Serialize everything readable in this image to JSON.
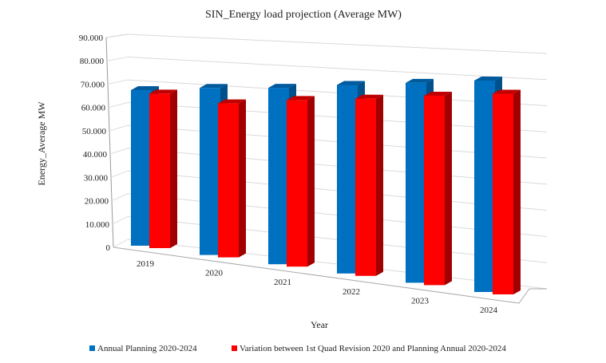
{
  "chart_data": {
    "type": "bar",
    "title": "SIN_Energy load projection (Average MW)",
    "xlabel": "Year",
    "ylabel": "Energy_Average MW",
    "categories": [
      "2019",
      "2020",
      "2021",
      "2022",
      "2023",
      "2024"
    ],
    "ylim": [
      0,
      90000
    ],
    "yticks": [
      "0",
      "10.000",
      "20.000",
      "30.000",
      "40.000",
      "50.000",
      "60.000",
      "70.000",
      "80.000",
      "90.000"
    ],
    "grid": true,
    "style": "3d-clustered",
    "legend_position": "bottom",
    "series": [
      {
        "name": "Annual Planning 2020-2024",
        "color": "#0070C0",
        "values": [
          68000,
          70500,
          72000,
          74500,
          76500,
          78500
        ]
      },
      {
        "name": "Variation between 1st Quad Revision 2020 and Planning Annual 2020-2024",
        "color": "#FF0000",
        "values": [
          67500,
          65000,
          68000,
          70000,
          72500,
          74500
        ]
      }
    ]
  }
}
